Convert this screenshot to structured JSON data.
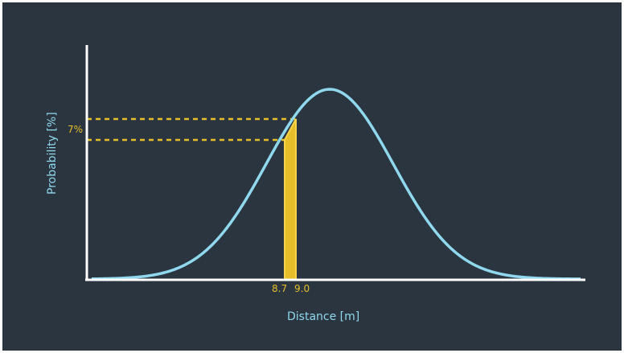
{
  "chart_data": {
    "type": "line",
    "xlabel": "Distance [m]",
    "ylabel": "Probability [%]",
    "highlight": {
      "x_start_label": "8.7",
      "x_end_label": "9.0",
      "y_label": "7%"
    }
  },
  "colors": {
    "background": "#2b3540",
    "curve": "#8fd8ee",
    "highlight": "#e6be2a",
    "axis": "#ffffff"
  }
}
